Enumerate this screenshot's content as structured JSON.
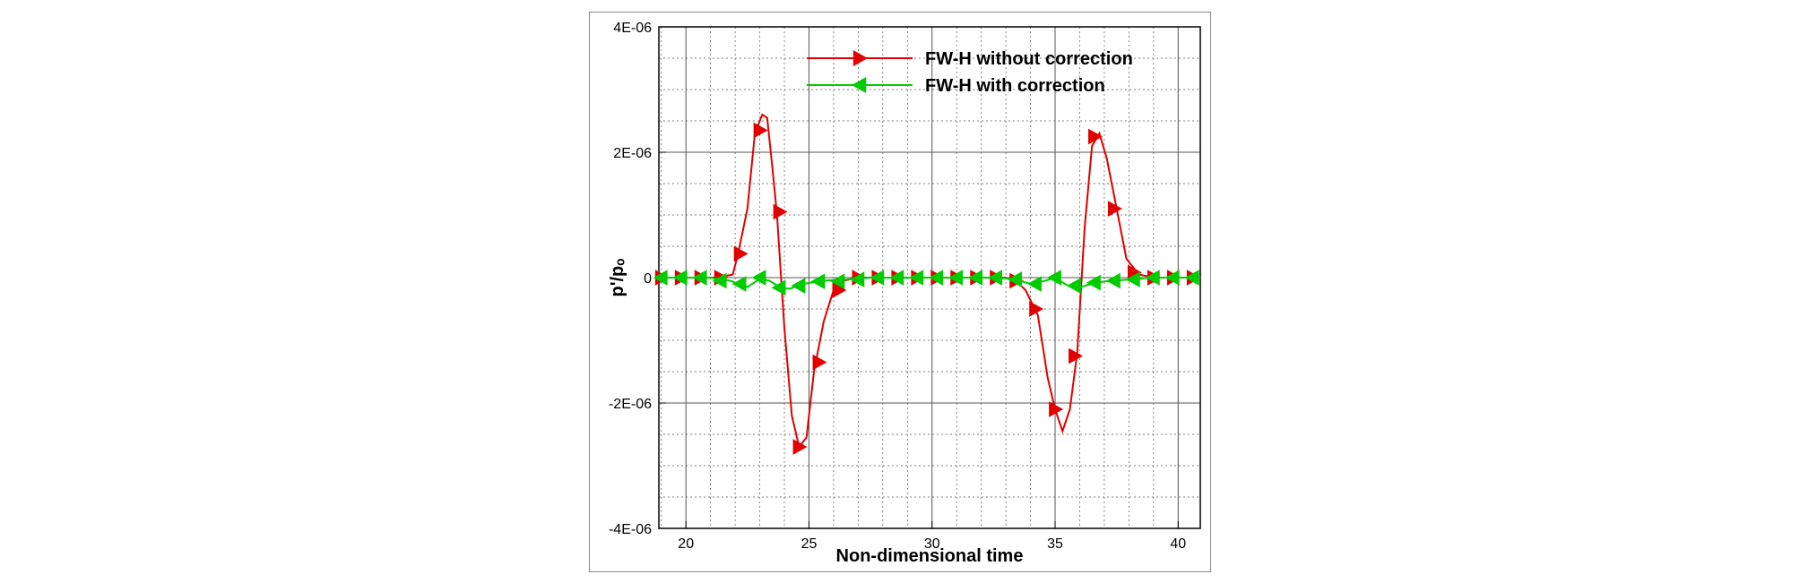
{
  "chart_data": {
    "type": "line",
    "title": "",
    "xlabel": "Non-dimensional time",
    "ylabel": "p'/pₒ",
    "xlim": [
      18.9,
      40.9
    ],
    "ylim": [
      -4e-06,
      4e-06
    ],
    "x_ticks": [
      20,
      25,
      30,
      35,
      40
    ],
    "x_tick_labels": [
      "20",
      "25",
      "30",
      "35",
      "40"
    ],
    "y_ticks": [
      -4e-06,
      -2e-06,
      0,
      2e-06,
      4e-06
    ],
    "y_tick_labels": [
      "-4E-06",
      "-2E-06",
      "0",
      "2E-06",
      "4E-06"
    ],
    "x_minor_step": 1,
    "y_minor_step": 5e-07,
    "grid": true,
    "legend_position": "top-center",
    "colors": {
      "without": "#e00000",
      "with": "#00cc00",
      "grid": "#555555",
      "frame": "#8a8a8a"
    },
    "series": [
      {
        "name": "FW-H without correction",
        "marker": "triangle-right",
        "color": "#e00000",
        "x": [
          18.9,
          19.7,
          20.5,
          21.3,
          21.9,
          22.1,
          22.5,
          22.8,
          23.1,
          23.3,
          23.5,
          23.7,
          24.0,
          24.3,
          24.6,
          24.9,
          25.2,
          25.6,
          26.0,
          26.4,
          27.0,
          28.0,
          29.0,
          30.0,
          31.0,
          32.0,
          33.0,
          33.4,
          33.8,
          34.3,
          34.7,
          35.0,
          35.3,
          35.6,
          35.9,
          36.2,
          36.5,
          36.8,
          37.1,
          37.5,
          37.9,
          38.4,
          39.0,
          40.0,
          40.9
        ],
        "y": [
          0,
          0,
          0,
          0,
          5e-08,
          3.5e-07,
          1.1e-06,
          2.3e-06,
          2.6e-06,
          2.55e-06,
          1.8e-06,
          1e-06,
          -8e-07,
          -2.2e-06,
          -2.7e-06,
          -2.55e-06,
          -1.5e-06,
          -7e-07,
          -2e-07,
          -5e-08,
          0,
          0,
          0,
          0,
          0,
          0,
          0,
          -5e-08,
          -2e-07,
          -6e-07,
          -1.6e-06,
          -2.1e-06,
          -2.45e-06,
          -2.1e-06,
          -1.2e-06,
          8e-07,
          2.1e-06,
          2.3e-06,
          1.9e-06,
          1.1e-06,
          3e-07,
          5e-08,
          0,
          0,
          0
        ],
        "marker_x": [
          19.0,
          19.8,
          20.6,
          21.4,
          22.2,
          23.0,
          23.8,
          24.6,
          25.4,
          26.2,
          27.0,
          27.8,
          28.6,
          29.4,
          30.2,
          31.0,
          31.8,
          32.6,
          33.4,
          34.2,
          35.0,
          35.8,
          36.6,
          37.4,
          38.2,
          39.0,
          39.8,
          40.6
        ],
        "marker_y": [
          0,
          0,
          0,
          0,
          3.8e-07,
          2.35e-06,
          1.05e-06,
          -2.7e-06,
          -1.35e-06,
          -2e-07,
          0,
          0,
          0,
          0,
          0,
          0,
          0,
          0,
          -5e-08,
          -5e-07,
          -2.1e-06,
          -1.25e-06,
          2.25e-06,
          1.1e-06,
          8e-08,
          0,
          0,
          0
        ]
      },
      {
        "name": "FW-H with correction",
        "marker": "triangle-left",
        "color": "#00cc00",
        "x": [
          18.9,
          20.0,
          21.0,
          21.8,
          22.5,
          23.0,
          23.4,
          23.8,
          24.2,
          24.8,
          25.5,
          26.5,
          27.5,
          28.5,
          29.5,
          30.5,
          31.5,
          32.5,
          33.3,
          34.0,
          34.6,
          35.0,
          35.4,
          35.8,
          36.3,
          37.0,
          38.0,
          39.0,
          40.0,
          40.9
        ],
        "y": [
          0,
          0,
          0,
          -5e-08,
          -1.5e-07,
          -2e-08,
          -5e-08,
          -1.5e-07,
          -1.8e-07,
          -1e-07,
          -5e-08,
          -3e-08,
          0,
          0,
          0,
          0,
          0,
          0,
          -2e-08,
          -1e-07,
          -5e-08,
          0,
          -1e-07,
          -1.8e-07,
          -1.2e-07,
          -6e-08,
          -3e-08,
          0,
          0,
          0
        ],
        "marker_x": [
          19.0,
          19.8,
          20.6,
          21.4,
          22.2,
          23.0,
          23.8,
          24.6,
          25.4,
          26.2,
          27.0,
          27.8,
          28.6,
          29.4,
          30.2,
          31.0,
          31.8,
          32.6,
          33.4,
          34.2,
          35.0,
          35.8,
          36.6,
          37.4,
          38.2,
          39.0,
          39.8,
          40.6
        ],
        "marker_y": [
          0,
          0,
          0,
          -5e-08,
          -1e-07,
          0,
          -1.6e-07,
          -1.3e-07,
          -6e-08,
          -6e-08,
          -3e-08,
          0,
          0,
          0,
          0,
          0,
          0,
          0,
          -3e-08,
          -1e-07,
          0,
          -1.3e-07,
          -8e-08,
          -5e-08,
          -3e-08,
          0,
          0,
          0
        ]
      }
    ]
  }
}
